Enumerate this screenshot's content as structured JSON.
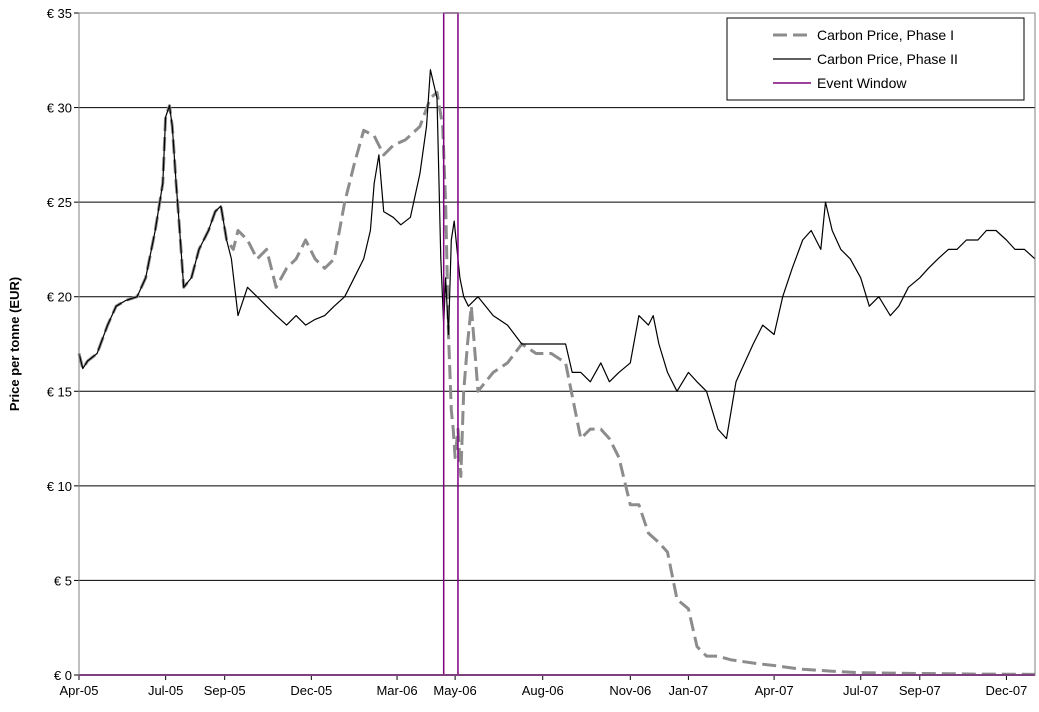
{
  "chart_data": {
    "type": "line",
    "title": "",
    "xlabel": "",
    "ylabel": "Price per tonne (EUR)",
    "ylim": [
      0,
      35
    ],
    "y_ticks": [
      0,
      5,
      10,
      15,
      20,
      25,
      30,
      35
    ],
    "y_tick_labels": [
      "€ 0",
      "€ 5",
      "€ 10",
      "€ 15",
      "€ 20",
      "€ 25",
      "€ 30",
      "€ 35"
    ],
    "x_range": [
      "2005-04-01",
      "2007-12-31"
    ],
    "x_ticks": [
      "2005-04-01",
      "2005-07-01",
      "2005-09-01",
      "2005-12-01",
      "2006-03-01",
      "2006-05-01",
      "2006-08-01",
      "2006-11-01",
      "2007-01-01",
      "2007-04-01",
      "2007-07-01",
      "2007-09-01",
      "2007-12-01"
    ],
    "x_tick_labels": [
      "Apr-05",
      "Jul-05",
      "Sep-05",
      "Dec-05",
      "Mar-06",
      "May-06",
      "Aug-06",
      "Nov-06",
      "Jan-07",
      "Apr-07",
      "Jul-07",
      "Sep-07",
      "Dec-07"
    ],
    "grid": "horizontal",
    "legend_position": "top-right",
    "colors": {
      "phase1": "#8c8c8c",
      "phase2": "#000000",
      "event": "#800080"
    },
    "series": [
      {
        "name": "Carbon Price, Phase I",
        "style": "dashed",
        "x": [
          "2005-04-01",
          "2005-04-05",
          "2005-04-10",
          "2005-04-20",
          "2005-05-01",
          "2005-05-10",
          "2005-05-20",
          "2005-06-01",
          "2005-06-10",
          "2005-06-20",
          "2005-06-28",
          "2005-07-01",
          "2005-07-05",
          "2005-07-08",
          "2005-07-12",
          "2005-07-15",
          "2005-07-20",
          "2005-07-28",
          "2005-08-05",
          "2005-08-15",
          "2005-08-22",
          "2005-08-28",
          "2005-09-03",
          "2005-09-10",
          "2005-09-15",
          "2005-09-25",
          "2005-10-05",
          "2005-10-15",
          "2005-10-25",
          "2005-11-05",
          "2005-11-15",
          "2005-11-25",
          "2005-12-05",
          "2005-12-15",
          "2005-12-25",
          "2006-01-05",
          "2006-01-15",
          "2006-01-25",
          "2006-02-05",
          "2006-02-15",
          "2006-02-25",
          "2006-03-10",
          "2006-03-25",
          "2006-04-05",
          "2006-04-12",
          "2006-04-18",
          "2006-04-21",
          "2006-04-24",
          "2006-04-27",
          "2006-04-29",
          "2006-05-01",
          "2006-05-04",
          "2006-05-07",
          "2006-05-10",
          "2006-05-14",
          "2006-05-18",
          "2006-05-25",
          "2006-06-10",
          "2006-06-25",
          "2006-07-10",
          "2006-07-25",
          "2006-08-10",
          "2006-08-25",
          "2006-09-10",
          "2006-09-20",
          "2006-10-01",
          "2006-10-10",
          "2006-10-20",
          "2006-11-01",
          "2006-11-10",
          "2006-11-20",
          "2006-12-01",
          "2006-12-10",
          "2006-12-20",
          "2007-01-01",
          "2007-01-10",
          "2007-01-20",
          "2007-02-01",
          "2007-02-15",
          "2007-03-01",
          "2007-03-15",
          "2007-04-01",
          "2007-04-15",
          "2007-05-01",
          "2007-06-01",
          "2007-07-01",
          "2007-08-01",
          "2007-09-01",
          "2007-10-01",
          "2007-11-01",
          "2007-12-01",
          "2007-12-31"
        ],
        "values": [
          17.0,
          16.2,
          16.6,
          17.0,
          18.5,
          19.5,
          19.8,
          20.0,
          21.0,
          23.5,
          26.0,
          29.5,
          30.1,
          29.0,
          26.0,
          24.0,
          20.5,
          21.0,
          22.5,
          23.5,
          24.5,
          24.8,
          23.0,
          22.5,
          23.5,
          23.0,
          22.0,
          22.5,
          20.5,
          21.5,
          22.0,
          23.0,
          22.0,
          21.5,
          22.0,
          25.0,
          27.0,
          28.8,
          28.5,
          27.5,
          28.0,
          28.3,
          29.0,
          30.5,
          30.8,
          29.0,
          25.0,
          18.0,
          14.0,
          13.0,
          11.5,
          13.0,
          10.5,
          15.0,
          17.5,
          19.5,
          15.0,
          16.0,
          16.5,
          17.5,
          17.0,
          17.0,
          16.5,
          12.5,
          13.0,
          13.0,
          12.5,
          11.5,
          9.0,
          9.0,
          7.5,
          7.0,
          6.5,
          4.0,
          3.5,
          1.5,
          1.0,
          1.0,
          0.8,
          0.7,
          0.6,
          0.5,
          0.4,
          0.3,
          0.2,
          0.12,
          0.1,
          0.08,
          0.07,
          0.05,
          0.04,
          0.03
        ]
      },
      {
        "name": "Carbon Price, Phase II",
        "style": "solid",
        "x": [
          "2005-04-01",
          "2005-04-05",
          "2005-04-10",
          "2005-04-20",
          "2005-05-01",
          "2005-05-10",
          "2005-05-20",
          "2005-06-01",
          "2005-06-10",
          "2005-06-20",
          "2005-06-28",
          "2005-07-01",
          "2005-07-05",
          "2005-07-08",
          "2005-07-12",
          "2005-07-15",
          "2005-07-20",
          "2005-07-28",
          "2005-08-05",
          "2005-08-15",
          "2005-08-22",
          "2005-08-28",
          "2005-09-03",
          "2005-09-08",
          "2005-09-15",
          "2005-09-25",
          "2005-10-05",
          "2005-10-15",
          "2005-10-25",
          "2005-11-05",
          "2005-11-15",
          "2005-11-25",
          "2005-12-05",
          "2005-12-15",
          "2005-12-25",
          "2006-01-05",
          "2006-01-15",
          "2006-01-25",
          "2006-02-01",
          "2006-02-05",
          "2006-02-10",
          "2006-02-15",
          "2006-02-25",
          "2006-03-05",
          "2006-03-15",
          "2006-03-25",
          "2006-04-01",
          "2006-04-05",
          "2006-04-12",
          "2006-04-16",
          "2006-04-19",
          "2006-04-21",
          "2006-04-24",
          "2006-04-27",
          "2006-04-30",
          "2006-05-03",
          "2006-05-06",
          "2006-05-10",
          "2006-05-15",
          "2006-05-25",
          "2006-06-10",
          "2006-06-25",
          "2006-07-10",
          "2006-07-25",
          "2006-08-10",
          "2006-08-25",
          "2006-09-01",
          "2006-09-10",
          "2006-09-20",
          "2006-10-01",
          "2006-10-10",
          "2006-10-20",
          "2006-11-01",
          "2006-11-10",
          "2006-11-20",
          "2006-11-25",
          "2006-12-01",
          "2006-12-10",
          "2006-12-20",
          "2007-01-01",
          "2007-01-10",
          "2007-01-20",
          "2007-02-01",
          "2007-02-10",
          "2007-02-20",
          "2007-03-01",
          "2007-03-10",
          "2007-03-20",
          "2007-04-01",
          "2007-04-10",
          "2007-04-20",
          "2007-05-01",
          "2007-05-10",
          "2007-05-20",
          "2007-05-25",
          "2007-06-01",
          "2007-06-10",
          "2007-06-20",
          "2007-07-01",
          "2007-07-10",
          "2007-07-20",
          "2007-08-01",
          "2007-08-10",
          "2007-08-20",
          "2007-09-01",
          "2007-09-10",
          "2007-09-20",
          "2007-10-01",
          "2007-10-10",
          "2007-10-20",
          "2007-11-01",
          "2007-11-10",
          "2007-11-20",
          "2007-12-01",
          "2007-12-10",
          "2007-12-20",
          "2007-12-31"
        ],
        "values": [
          17.0,
          16.2,
          16.6,
          17.0,
          18.5,
          19.5,
          19.8,
          20.0,
          21.0,
          23.5,
          26.0,
          29.5,
          30.1,
          29.0,
          26.0,
          24.0,
          20.5,
          21.0,
          22.5,
          23.5,
          24.5,
          24.8,
          23.0,
          22.0,
          19.0,
          20.5,
          20.0,
          19.5,
          19.0,
          18.5,
          19.0,
          18.5,
          18.8,
          19.0,
          19.5,
          20.0,
          21.0,
          22.0,
          23.5,
          26.0,
          27.5,
          24.5,
          24.2,
          23.8,
          24.2,
          26.5,
          29.0,
          32.0,
          30.5,
          22.0,
          18.5,
          21.0,
          18.0,
          23.0,
          24.0,
          22.5,
          21.0,
          20.0,
          19.5,
          20.0,
          19.0,
          18.5,
          17.5,
          17.5,
          17.5,
          17.5,
          16.0,
          16.0,
          15.5,
          16.5,
          15.5,
          16.0,
          16.5,
          19.0,
          18.5,
          19.0,
          17.5,
          16.0,
          15.0,
          16.0,
          15.5,
          15.0,
          13.0,
          12.5,
          15.5,
          16.5,
          17.5,
          18.5,
          18.0,
          20.0,
          21.5,
          23.0,
          23.5,
          22.5,
          25.0,
          23.5,
          22.5,
          22.0,
          21.0,
          19.5,
          20.0,
          19.0,
          19.5,
          20.5,
          21.0,
          21.5,
          22.0,
          22.5,
          22.5,
          23.0,
          23.0,
          23.5,
          23.5,
          23.0,
          22.5,
          22.5,
          22.0
        ]
      }
    ],
    "event_window": {
      "name": "Event Window",
      "start": "2006-04-19",
      "end": "2006-05-04"
    }
  }
}
